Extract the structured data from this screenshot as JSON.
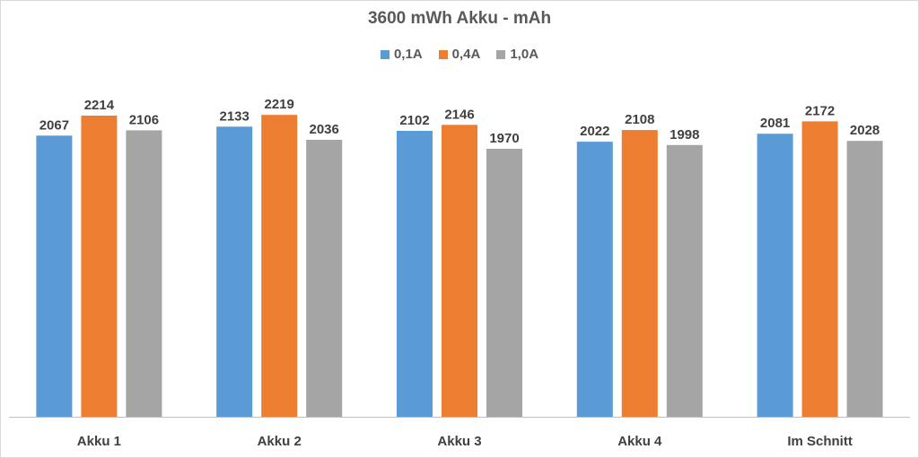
{
  "chart_data": {
    "type": "bar",
    "title": "3600 mWh Akku - mAh",
    "categories": [
      "Akku 1",
      "Akku 2",
      "Akku 3",
      "Akku 4",
      "Im Schnitt"
    ],
    "series": [
      {
        "name": "0,1A",
        "color": "#5b9bd5",
        "values": [
          2067,
          2133,
          2102,
          2022,
          2081
        ]
      },
      {
        "name": "0,4A",
        "color": "#ed7d31",
        "values": [
          2214,
          2219,
          2146,
          2108,
          2172
        ]
      },
      {
        "name": "1,0A",
        "color": "#a5a5a5",
        "values": [
          2106,
          2036,
          1970,
          1998,
          2028
        ]
      }
    ],
    "ylim": [
      0,
      2600
    ],
    "legend_position": "top",
    "grid": false,
    "data_labels": true
  }
}
